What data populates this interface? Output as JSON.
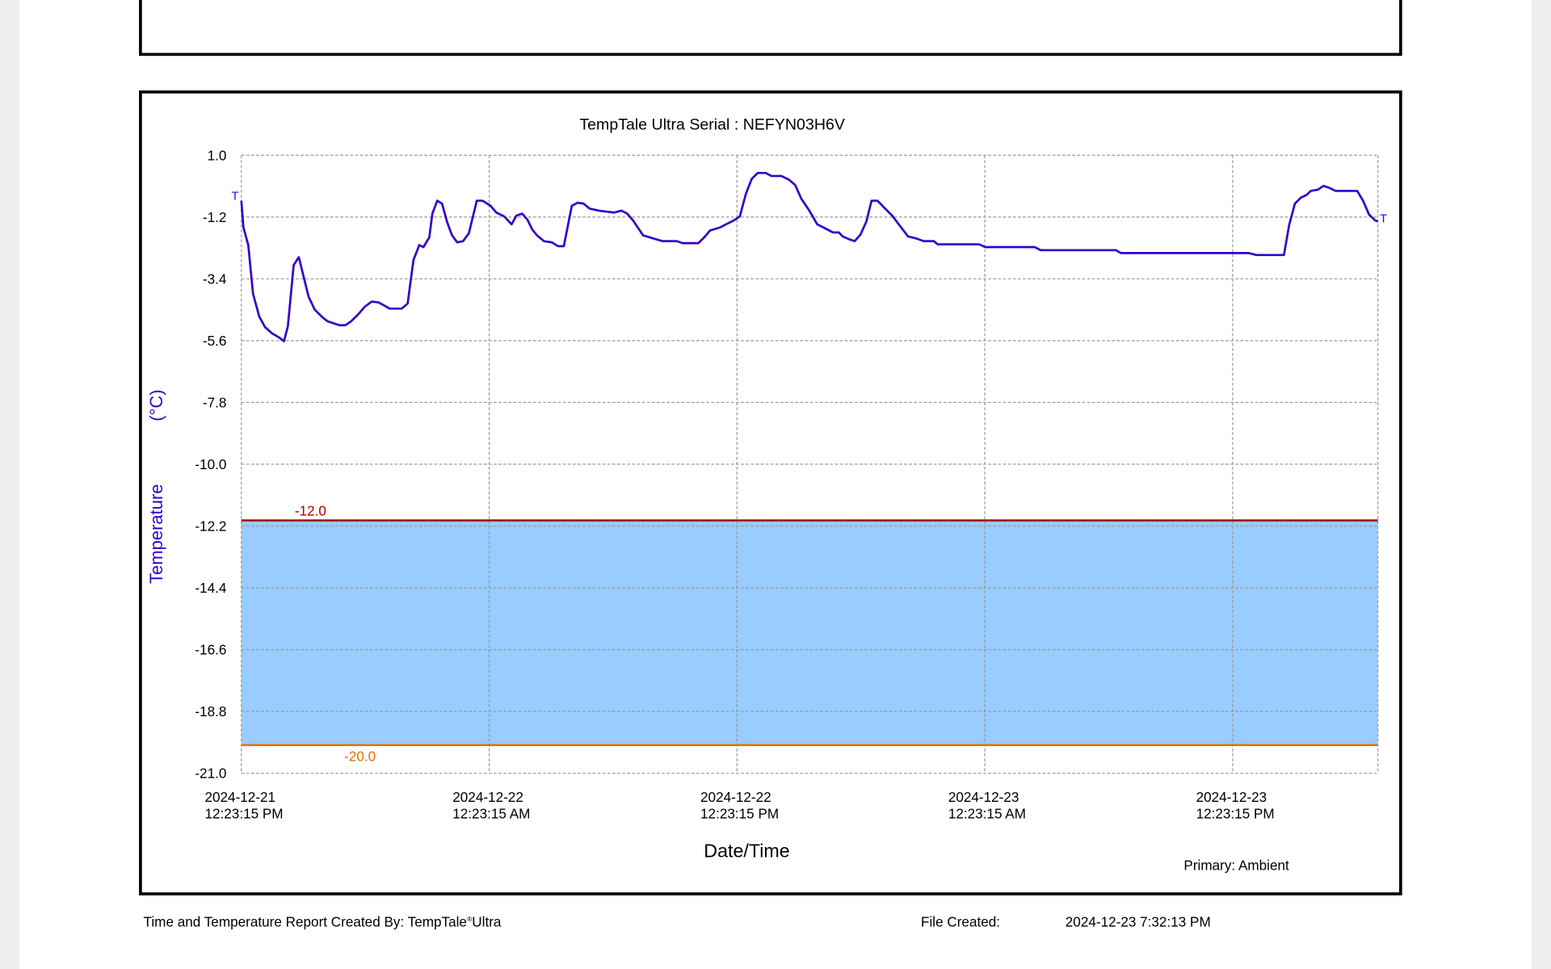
{
  "chart_data": {
    "type": "line",
    "title": "TempTale Ultra  Serial : NEFYN03H6V",
    "y_label": "Temperature",
    "y_unit": "(°C)",
    "x_label": "Date/Time",
    "sensor": "Primary: Ambient",
    "start_marker": "T",
    "end_marker": "T",
    "color": "#3300cc",
    "band_color": "#99ccff",
    "grid": true,
    "upper_limit": {
      "value": -12,
      "label": "-12.0",
      "color": "#aa0000"
    },
    "lower_limit": {
      "value": -20,
      "label": "-20.0",
      "color": "#e87000"
    },
    "ylim": [
      -21,
      1
    ],
    "yticks": [
      {
        "value": 1,
        "label": "1.0"
      },
      -1.2,
      -3.4,
      -5.6,
      -7.8,
      {
        "value": -10,
        "label": "-10.0"
      },
      -12.2,
      -14.4,
      -16.6,
      -18.8,
      {
        "value": -21,
        "label": "-21.0"
      }
    ],
    "xlim": [
      "2024-12-21T12:23:15",
      "2024-12-23T19:25:15"
    ],
    "xticks": [
      {
        "value": "2024-12-21T12:23:15",
        "label": "2024-12-21\n12:23:15 PM"
      },
      {
        "value": "2024-12-22T00:23:15",
        "label": "2024-12-22\n12:23:15 AM"
      },
      {
        "value": "2024-12-22T12:23:15",
        "label": "2024-12-22\n12:23:15 PM"
      },
      {
        "value": "2024-12-23T00:23:15",
        "label": "2024-12-23\n12:23:15 AM"
      },
      {
        "value": "2024-12-23T12:23:15",
        "label": "2024-12-23\n12:23:15 PM"
      }
    ],
    "x": [
      "2024-12-21T12:23:15",
      "2024-12-21T12:29:15",
      "2024-12-21T12:43:15",
      "2024-12-21T12:57:15",
      "2024-12-21T13:15:15",
      "2024-12-21T13:32:15",
      "2024-12-21T13:52:15",
      "2024-12-21T14:12:15",
      "2024-12-21T14:27:15",
      "2024-12-21T14:38:15",
      "2024-12-21T14:55:15",
      "2024-12-21T15:10:15",
      "2024-12-21T15:24:15",
      "2024-12-21T15:38:15",
      "2024-12-21T15:56:15",
      "2024-12-21T16:16:15",
      "2024-12-21T16:33:15",
      "2024-12-21T16:50:15",
      "2024-12-21T17:08:15",
      "2024-12-21T17:25:15",
      "2024-12-21T17:42:15",
      "2024-12-21T18:02:15",
      "2024-12-21T18:22:15",
      "2024-12-21T18:42:15",
      "2024-12-21T19:02:15",
      "2024-12-21T19:34:15",
      "2024-12-21T20:09:15",
      "2024-12-21T20:26:15",
      "2024-12-21T20:43:15",
      "2024-12-21T21:00:15",
      "2024-12-21T21:12:15",
      "2024-12-21T21:29:15",
      "2024-12-21T21:38:15",
      "2024-12-21T21:52:15",
      "2024-12-21T22:06:15",
      "2024-12-21T22:21:15",
      "2024-12-21T22:35:15",
      "2024-12-21T22:50:15",
      "2024-12-21T23:07:15",
      "2024-12-21T23:24:15",
      "2024-12-21T23:47:15",
      "2024-12-22T00:04:15",
      "2024-12-22T00:27:15",
      "2024-12-22T00:44:15",
      "2024-12-22T01:07:15",
      "2024-12-22T01:28:15",
      "2024-12-22T01:42:15",
      "2024-12-22T01:59:15",
      "2024-12-22T02:14:15",
      "2024-12-22T02:28:15",
      "2024-12-22T02:42:15",
      "2024-12-22T03:02:15",
      "2024-12-22T03:25:15",
      "2024-12-22T03:43:15",
      "2024-12-22T04:00:15",
      "2024-12-22T04:23:15",
      "2024-12-22T04:40:15",
      "2024-12-22T04:57:15",
      "2024-12-22T05:15:15",
      "2024-12-22T05:41:15",
      "2024-12-22T06:06:15",
      "2024-12-22T06:26:15",
      "2024-12-22T06:47:15",
      "2024-12-22T07:04:15",
      "2024-12-22T07:21:15",
      "2024-12-22T07:50:15",
      "2024-12-22T08:19:15",
      "2024-12-22T08:47:15",
      "2024-12-22T09:28:15",
      "2024-12-22T09:45:15",
      "2024-12-22T10:31:15",
      "2024-12-22T10:48:15",
      "2024-12-22T11:05:15",
      "2024-12-22T11:34:15",
      "2024-12-22T11:51:15",
      "2024-12-22T12:14:15",
      "2024-12-22T12:31:15",
      "2024-12-22T12:49:15",
      "2024-12-22T13:06:15",
      "2024-12-22T13:23:15",
      "2024-12-22T13:46:15",
      "2024-12-22T14:03:15",
      "2024-12-22T14:32:15",
      "2024-12-22T14:55:15",
      "2024-12-22T15:12:15",
      "2024-12-22T15:30:15",
      "2024-12-22T15:53:15",
      "2024-12-22T16:16:15",
      "2024-12-22T16:39:15",
      "2024-12-22T17:02:15",
      "2024-12-22T17:19:15",
      "2024-12-22T17:30:15",
      "2024-12-22T17:48:15",
      "2024-12-22T18:05:15",
      "2024-12-22T18:22:15",
      "2024-12-22T18:39:15",
      "2024-12-22T18:54:15",
      "2024-12-22T19:11:15",
      "2024-12-22T19:31:15",
      "2024-12-22T19:54:15",
      "2024-12-22T20:11:15",
      "2024-12-22T20:40:15",
      "2024-12-22T21:03:15",
      "2024-12-22T21:26:15",
      "2024-12-22T21:55:15",
      "2024-12-22T22:06:15",
      "2024-12-23T00:07:15",
      "2024-12-23T00:24:15",
      "2024-12-23T02:48:15",
      "2024-12-23T03:05:15",
      "2024-12-23T06:44:15",
      "2024-12-23T06:58:15",
      "2024-12-23T13:09:15",
      "2024-12-23T13:32:15",
      "2024-12-23T14:52:15",
      "2024-12-23T15:07:15",
      "2024-12-23T15:24:15",
      "2024-12-23T15:41:15",
      "2024-12-23T15:58:15",
      "2024-12-23T16:10:15",
      "2024-12-23T16:30:15",
      "2024-12-23T16:47:15",
      "2024-12-23T17:04:15",
      "2024-12-23T17:22:15",
      "2024-12-23T18:25:15",
      "2024-12-23T18:42:15",
      "2024-12-23T18:59:15",
      "2024-12-23T19:17:15",
      "2024-12-23T19:25:15"
    ],
    "values": [
      -0.62,
      -1.57,
      -2.2,
      -3.93,
      -4.74,
      -5.12,
      -5.34,
      -5.48,
      -5.62,
      -5.09,
      -2.91,
      -2.63,
      -3.33,
      -4.03,
      -4.49,
      -4.74,
      -4.91,
      -4.98,
      -5.05,
      -5.05,
      -4.91,
      -4.67,
      -4.39,
      -4.21,
      -4.24,
      -4.46,
      -4.46,
      -4.28,
      -2.73,
      -2.2,
      -2.27,
      -1.92,
      -1.08,
      -0.62,
      -0.72,
      -1.39,
      -1.85,
      -2.1,
      -2.06,
      -1.78,
      -0.62,
      -0.62,
      -0.8,
      -1.04,
      -1.18,
      -1.46,
      -1.15,
      -1.08,
      -1.29,
      -1.64,
      -1.85,
      -2.06,
      -2.1,
      -2.24,
      -2.24,
      -0.8,
      -0.69,
      -0.72,
      -0.9,
      -0.97,
      -1.01,
      -1.04,
      -0.97,
      -1.08,
      -1.32,
      -1.85,
      -1.96,
      -2.06,
      -2.06,
      -2.13,
      -2.13,
      -1.92,
      -1.68,
      -1.57,
      -1.46,
      -1.32,
      -1.18,
      -0.37,
      0.16,
      0.37,
      0.37,
      0.26,
      0.26,
      0.12,
      -0.06,
      -0.55,
      -0.97,
      -1.46,
      -1.6,
      -1.75,
      -1.75,
      -1.89,
      -1.99,
      -2.06,
      -1.82,
      -1.36,
      -0.62,
      -0.62,
      -0.87,
      -1.15,
      -1.43,
      -1.89,
      -1.96,
      -2.06,
      -2.06,
      -2.17,
      -2.17,
      -2.27,
      -2.27,
      -2.38,
      -2.38,
      -2.48,
      -2.48,
      -2.55,
      -2.55,
      -1.5,
      -0.72,
      -0.51,
      -0.41,
      -0.27,
      -0.23,
      -0.09,
      -0.16,
      -0.27,
      -0.27,
      -0.62,
      -1.11,
      -1.32,
      -1.36
    ]
  },
  "footer": {
    "created_by": "Time and Temperature Report Created By:  TempTale",
    "created_by_mark": "®",
    "created_by_suffix": "Ultra",
    "file_created_label": "File Created:",
    "file_created_value": "2024-12-23  7:32:13 PM"
  }
}
